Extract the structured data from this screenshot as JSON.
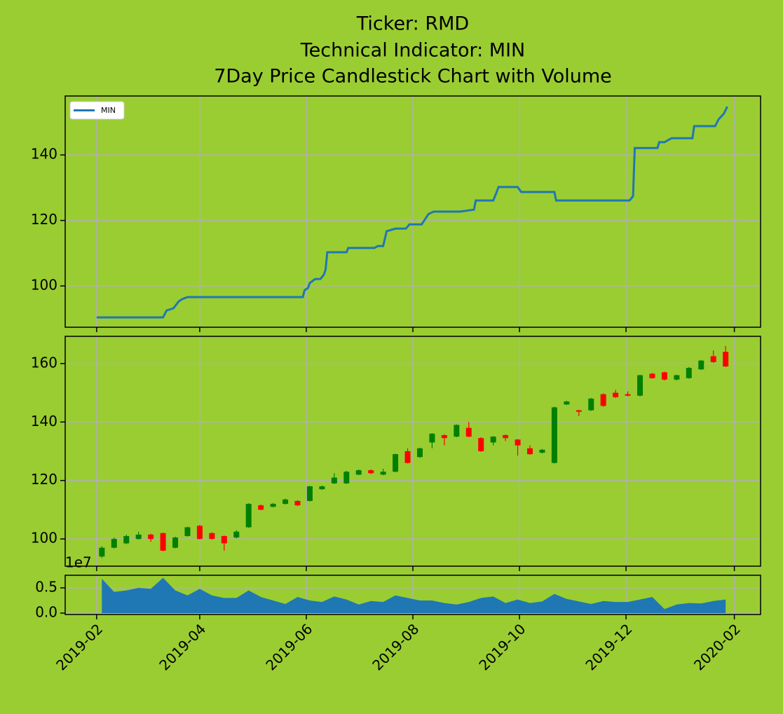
{
  "chart_data": [
    {
      "type": "line",
      "title": [
        "Ticker: RMD",
        "Technical Indicator: MIN",
        "7Day Price Candlestick Chart with Volume"
      ],
      "legend": "upper left",
      "grid": true,
      "ylim": [
        87.4,
        158
      ],
      "yticks": [
        100,
        120,
        140
      ],
      "series": [
        {
          "name": "MIN",
          "color": "#1f77b4",
          "x": [
            "2019-02-01",
            "2019-03-11",
            "2019-03-13",
            "2019-03-17",
            "2019-03-20",
            "2019-03-22",
            "2019-03-25",
            "2019-05-30",
            "2019-05-31",
            "2019-06-02",
            "2019-06-03",
            "2019-06-06",
            "2019-06-09",
            "2019-06-11",
            "2019-06-12",
            "2019-06-13",
            "2019-06-24",
            "2019-06-25",
            "2019-07-10",
            "2019-07-12",
            "2019-07-15",
            "2019-07-17",
            "2019-07-22",
            "2019-07-28",
            "2019-07-30",
            "2019-08-06",
            "2019-08-10",
            "2019-08-13",
            "2019-08-28",
            "2019-09-05",
            "2019-09-06",
            "2019-09-16",
            "2019-09-18",
            "2019-09-19",
            "2019-09-30",
            "2019-10-02",
            "2019-10-21",
            "2019-10-22",
            "2019-12-03",
            "2019-12-05",
            "2019-12-06",
            "2019-12-19",
            "2019-12-20",
            "2019-12-23",
            "2019-12-27",
            "2020-01-08",
            "2020-01-09",
            "2020-01-21",
            "2020-01-23",
            "2020-01-26",
            "2020-01-28"
          ],
          "values": [
            90.4,
            90.4,
            92.5,
            93.2,
            95.3,
            96.0,
            96.6,
            96.6,
            98.7,
            99.4,
            100.9,
            102.1,
            102.1,
            103.4,
            104.9,
            110.3,
            110.3,
            111.6,
            111.6,
            112.2,
            112.2,
            116.7,
            117.5,
            117.5,
            118.8,
            118.8,
            122.0,
            122.7,
            122.7,
            123.3,
            126.1,
            126.1,
            128.7,
            130.2,
            130.2,
            128.7,
            128.7,
            126.1,
            126.1,
            127.4,
            142.1,
            142.1,
            143.9,
            143.9,
            145.1,
            145.1,
            148.8,
            148.8,
            150.9,
            152.6,
            154.8
          ]
        }
      ]
    },
    {
      "type": "candlestick",
      "grid": true,
      "up_color": "#008000",
      "down_color": "#ff0000",
      "ylim": [
        90.7,
        169.3
      ],
      "yticks": [
        100,
        120,
        140,
        160
      ],
      "x": [
        "2019-02-04",
        "2019-02-11",
        "2019-02-18",
        "2019-02-25",
        "2019-03-04",
        "2019-03-11",
        "2019-03-18",
        "2019-03-25",
        "2019-04-01",
        "2019-04-08",
        "2019-04-15",
        "2019-04-22",
        "2019-04-29",
        "2019-05-06",
        "2019-05-13",
        "2019-05-20",
        "2019-05-27",
        "2019-06-03",
        "2019-06-10",
        "2019-06-17",
        "2019-06-24",
        "2019-07-01",
        "2019-07-08",
        "2019-07-15",
        "2019-07-22",
        "2019-07-29",
        "2019-08-05",
        "2019-08-12",
        "2019-08-19",
        "2019-08-26",
        "2019-09-02",
        "2019-09-09",
        "2019-09-16",
        "2019-09-23",
        "2019-09-30",
        "2019-10-07",
        "2019-10-14",
        "2019-10-21",
        "2019-10-28",
        "2019-11-04",
        "2019-11-11",
        "2019-11-18",
        "2019-11-25",
        "2019-12-02",
        "2019-12-09",
        "2019-12-16",
        "2019-12-23",
        "2019-12-30",
        "2020-01-06",
        "2020-01-13",
        "2020-01-20",
        "2020-01-27"
      ],
      "open": [
        94,
        97,
        98.5,
        100,
        101.5,
        102,
        97,
        101,
        104.5,
        102,
        101,
        100.5,
        104,
        111.5,
        111,
        112,
        113,
        113,
        117,
        119,
        119,
        122,
        123.5,
        122,
        123,
        130,
        128,
        133,
        135.5,
        135,
        138,
        134.5,
        133,
        135.5,
        134,
        131,
        129.5,
        126,
        146,
        144,
        144,
        149.5,
        150,
        149.5,
        149,
        156.5,
        157,
        154.5,
        155,
        158,
        162.5,
        164
      ],
      "high": [
        97.5,
        100.5,
        101.5,
        102.5,
        101.8,
        102.2,
        100.8,
        104.2,
        104.8,
        102.3,
        101.2,
        103,
        112.2,
        111.8,
        112.3,
        113.8,
        113.3,
        118.2,
        118.3,
        122.5,
        123.3,
        123.8,
        123.8,
        124,
        129.2,
        131,
        131.2,
        136.2,
        135.8,
        139.2,
        140,
        134.8,
        135.2,
        135.8,
        134.2,
        132,
        130.8,
        145.3,
        147.3,
        144.2,
        148.2,
        149.8,
        151,
        150.5,
        156.2,
        156.8,
        157.2,
        156.2,
        158.8,
        161.2,
        164.5,
        166
      ],
      "low": [
        93.5,
        96.8,
        98.2,
        99.8,
        99,
        95.8,
        96.8,
        100.8,
        99.8,
        99.8,
        96,
        100.2,
        103.8,
        109.8,
        110.8,
        111.8,
        111.2,
        112.8,
        116.8,
        118.8,
        118.8,
        121.8,
        122.2,
        121.8,
        122.8,
        125.8,
        127.8,
        131,
        132,
        134.8,
        134.8,
        129.8,
        132,
        133.5,
        128.5,
        128.8,
        129.2,
        125.8,
        145.8,
        142,
        143.8,
        145.2,
        148.2,
        148.8,
        148.8,
        154.8,
        154.2,
        154.2,
        154.8,
        157.8,
        160.2,
        158.8
      ],
      "close": [
        97,
        100,
        101,
        101.5,
        100,
        96,
        100.5,
        104,
        100,
        100,
        98.5,
        102.5,
        112,
        110,
        112,
        113.5,
        111.5,
        118,
        118,
        121,
        123,
        123.5,
        122.5,
        123,
        129,
        126,
        131,
        136,
        134.5,
        139,
        135,
        130,
        135,
        134.5,
        132,
        129,
        130.5,
        145,
        147,
        143.5,
        148,
        145.5,
        148.5,
        149,
        156,
        155,
        154.5,
        156,
        158.5,
        161,
        160.5,
        159
      ]
    },
    {
      "type": "area",
      "grid": true,
      "color": "#1f77b4",
      "offset_label": "1e7",
      "ylim": [
        -0.028,
        0.75
      ],
      "yticks": [
        {
          "value": 0,
          "label": "0.0"
        },
        0.5
      ],
      "xlim": [
        "2019-01-14",
        "2020-02-16"
      ],
      "xticks": [
        "2019-02",
        "2019-04",
        "2019-06",
        "2019-08",
        "2019-10",
        "2019-12",
        "2020-02"
      ],
      "x": [
        "2019-02-04",
        "2019-02-11",
        "2019-02-18",
        "2019-02-25",
        "2019-03-04",
        "2019-03-11",
        "2019-03-18",
        "2019-03-25",
        "2019-04-01",
        "2019-04-08",
        "2019-04-15",
        "2019-04-22",
        "2019-04-29",
        "2019-05-06",
        "2019-05-13",
        "2019-05-20",
        "2019-05-27",
        "2019-06-03",
        "2019-06-10",
        "2019-06-17",
        "2019-06-24",
        "2019-07-01",
        "2019-07-08",
        "2019-07-15",
        "2019-07-22",
        "2019-07-29",
        "2019-08-05",
        "2019-08-12",
        "2019-08-19",
        "2019-08-26",
        "2019-09-02",
        "2019-09-09",
        "2019-09-16",
        "2019-09-23",
        "2019-09-30",
        "2019-10-07",
        "2019-10-14",
        "2019-10-21",
        "2019-10-28",
        "2019-11-04",
        "2019-11-11",
        "2019-11-18",
        "2019-11-25",
        "2019-12-02",
        "2019-12-09",
        "2019-12-16",
        "2019-12-23",
        "2019-12-30",
        "2020-01-06",
        "2020-01-13",
        "2020-01-20",
        "2020-01-27"
      ],
      "values": [
        0.68,
        0.42,
        0.45,
        0.5,
        0.48,
        0.7,
        0.45,
        0.35,
        0.48,
        0.35,
        0.3,
        0.3,
        0.45,
        0.32,
        0.25,
        0.18,
        0.32,
        0.25,
        0.22,
        0.33,
        0.27,
        0.17,
        0.24,
        0.22,
        0.35,
        0.3,
        0.25,
        0.25,
        0.2,
        0.17,
        0.22,
        0.3,
        0.33,
        0.2,
        0.27,
        0.2,
        0.23,
        0.38,
        0.28,
        0.23,
        0.18,
        0.24,
        0.22,
        0.22,
        0.27,
        0.32,
        0.08,
        0.17,
        0.2,
        0.19,
        0.24,
        0.27
      ]
    }
  ]
}
